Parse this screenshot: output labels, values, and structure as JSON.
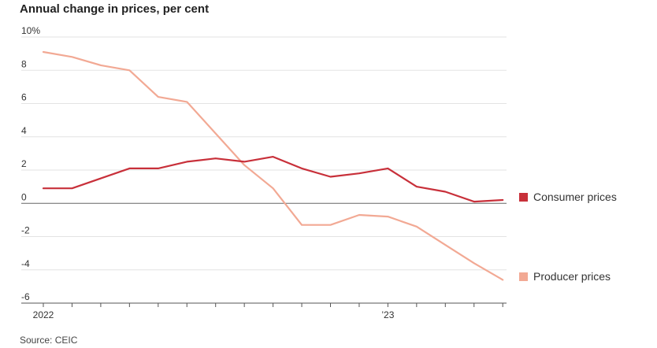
{
  "chart_data": {
    "type": "line",
    "title": "Annual change in prices, per cent",
    "source": "Source: CEIC",
    "x": [
      "2022-01",
      "2022-02",
      "2022-03",
      "2022-04",
      "2022-05",
      "2022-06",
      "2022-07",
      "2022-08",
      "2022-09",
      "2022-10",
      "2022-11",
      "2022-12",
      "2023-01",
      "2023-02",
      "2023-03",
      "2023-04",
      "2023-05"
    ],
    "x_tick_labels": [
      {
        "x": "2022-01",
        "label": "2022"
      },
      {
        "x": "2023-01",
        "label": "’23"
      }
    ],
    "y_ticks": [
      {
        "value": 10,
        "label": "10%"
      },
      {
        "value": 8,
        "label": "8"
      },
      {
        "value": 6,
        "label": "6"
      },
      {
        "value": 4,
        "label": "4"
      },
      {
        "value": 2,
        "label": "2"
      },
      {
        "value": 0,
        "label": "0"
      },
      {
        "value": -2,
        "label": "-2"
      },
      {
        "value": -4,
        "label": "-4"
      },
      {
        "value": -6,
        "label": "-6"
      }
    ],
    "ylim": [
      -6,
      10
    ],
    "grid": true,
    "series": [
      {
        "name": "Consumer prices",
        "color": "#c8303a",
        "values": [
          0.9,
          0.9,
          1.5,
          2.1,
          2.1,
          2.5,
          2.7,
          2.5,
          2.8,
          2.1,
          1.6,
          1.8,
          2.1,
          1.0,
          0.7,
          0.1,
          0.2
        ]
      },
      {
        "name": "Producer prices",
        "color": "#f2a994",
        "values": [
          9.1,
          8.8,
          8.3,
          8.0,
          6.4,
          6.1,
          4.2,
          2.3,
          0.9,
          -1.3,
          -1.3,
          -0.7,
          -0.8,
          -1.4,
          -2.5,
          -3.6,
          -4.6
        ]
      }
    ],
    "legend_position": "right"
  }
}
